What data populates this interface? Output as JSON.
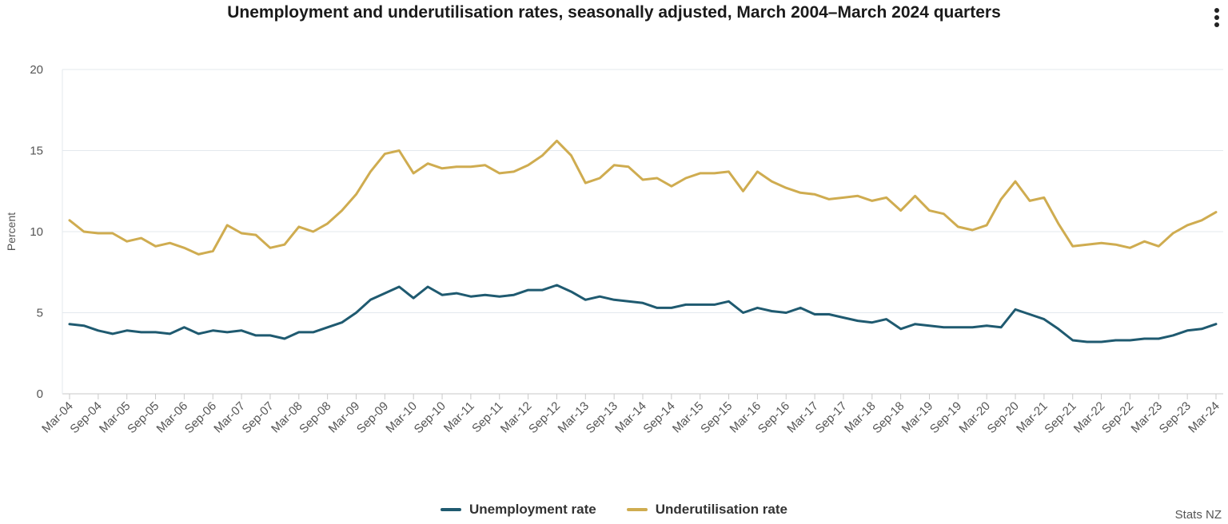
{
  "chart_data": {
    "type": "line",
    "title": "Unemployment and underutilisation rates, seasonally adjusted, March 2004–March 2024 quarters",
    "ylabel": "Percent",
    "xlabel": "",
    "ylim": [
      0,
      20
    ],
    "yticks": [
      "0",
      "5",
      "10",
      "15",
      "20"
    ],
    "grid": true,
    "legend_position": "bottom",
    "categories": [
      "Mar-04",
      "Jun-04",
      "Sep-04",
      "Dec-04",
      "Mar-05",
      "Jun-05",
      "Sep-05",
      "Dec-05",
      "Mar-06",
      "Jun-06",
      "Sep-06",
      "Dec-06",
      "Mar-07",
      "Jun-07",
      "Sep-07",
      "Dec-07",
      "Mar-08",
      "Jun-08",
      "Sep-08",
      "Dec-08",
      "Mar-09",
      "Jun-09",
      "Sep-09",
      "Dec-09",
      "Mar-10",
      "Jun-10",
      "Sep-10",
      "Dec-10",
      "Mar-11",
      "Jun-11",
      "Sep-11",
      "Dec-11",
      "Mar-12",
      "Jun-12",
      "Sep-12",
      "Dec-12",
      "Mar-13",
      "Jun-13",
      "Sep-13",
      "Dec-13",
      "Mar-14",
      "Jun-14",
      "Sep-14",
      "Dec-14",
      "Mar-15",
      "Jun-15",
      "Sep-15",
      "Dec-15",
      "Mar-16",
      "Jun-16",
      "Sep-16",
      "Dec-16",
      "Mar-17",
      "Jun-17",
      "Sep-17",
      "Dec-17",
      "Mar-18",
      "Jun-18",
      "Sep-18",
      "Dec-18",
      "Mar-19",
      "Jun-19",
      "Sep-19",
      "Dec-19",
      "Mar-20",
      "Jun-20",
      "Sep-20",
      "Dec-20",
      "Mar-21",
      "Jun-21",
      "Sep-21",
      "Dec-21",
      "Mar-22",
      "Jun-22",
      "Sep-22",
      "Dec-22",
      "Mar-23",
      "Jun-23",
      "Sep-23",
      "Dec-23",
      "Mar-24"
    ],
    "xtick_labels": [
      "Mar-04",
      "Sep-04",
      "Mar-05",
      "Sep-05",
      "Mar-06",
      "Sep-06",
      "Mar-07",
      "Sep-07",
      "Mar-08",
      "Sep-08",
      "Mar-09",
      "Sep-09",
      "Mar-10",
      "Sep-10",
      "Mar-11",
      "Sep-11",
      "Mar-12",
      "Sep-12",
      "Mar-13",
      "Sep-13",
      "Mar-14",
      "Sep-14",
      "Mar-15",
      "Sep-15",
      "Mar-16",
      "Sep-16",
      "Mar-17",
      "Sep-17",
      "Mar-18",
      "Sep-18",
      "Mar-19",
      "Sep-19",
      "Mar-20",
      "Sep-20",
      "Mar-21",
      "Sep-21",
      "Mar-22",
      "Sep-22",
      "Mar-23",
      "Sep-23",
      "Mar-24"
    ],
    "series": [
      {
        "name": "Unemployment rate",
        "color": "#1f5a70",
        "values": [
          4.3,
          4.2,
          3.9,
          3.7,
          3.9,
          3.8,
          3.8,
          3.7,
          4.1,
          3.7,
          3.9,
          3.8,
          3.9,
          3.6,
          3.6,
          3.4,
          3.8,
          3.8,
          4.1,
          4.4,
          5.0,
          5.8,
          6.2,
          6.6,
          5.9,
          6.6,
          6.1,
          6.2,
          6.0,
          6.1,
          6.0,
          6.1,
          6.4,
          6.4,
          6.7,
          6.3,
          5.8,
          6.0,
          5.8,
          5.7,
          5.6,
          5.3,
          5.3,
          5.5,
          5.5,
          5.5,
          5.7,
          5.0,
          5.3,
          5.1,
          5.0,
          5.3,
          4.9,
          4.9,
          4.7,
          4.5,
          4.4,
          4.6,
          4.0,
          4.3,
          4.2,
          4.1,
          4.1,
          4.1,
          4.2,
          4.1,
          5.2,
          4.9,
          4.6,
          4.0,
          3.3,
          3.2,
          3.2,
          3.3,
          3.3,
          3.4,
          3.4,
          3.6,
          3.9,
          4.0,
          4.3
        ]
      },
      {
        "name": "Underutilisation rate",
        "color": "#cfac50",
        "values": [
          10.7,
          10.0,
          9.9,
          9.9,
          9.4,
          9.6,
          9.1,
          9.3,
          9.0,
          8.6,
          8.8,
          10.4,
          9.9,
          9.8,
          9.0,
          9.2,
          10.3,
          10.0,
          10.5,
          11.3,
          12.3,
          13.7,
          14.8,
          15.0,
          13.6,
          14.2,
          13.9,
          14.0,
          14.0,
          14.1,
          13.6,
          13.7,
          14.1,
          14.7,
          15.6,
          14.7,
          13.0,
          13.3,
          14.1,
          14.0,
          13.2,
          13.3,
          12.8,
          13.3,
          13.6,
          13.6,
          13.7,
          12.5,
          13.7,
          13.1,
          12.7,
          12.4,
          12.3,
          12.0,
          12.1,
          12.2,
          11.9,
          12.1,
          11.3,
          12.2,
          11.3,
          11.1,
          10.3,
          10.1,
          10.4,
          12.0,
          13.1,
          11.9,
          12.1,
          10.5,
          9.1,
          9.2,
          9.3,
          9.2,
          9.0,
          9.4,
          9.1,
          9.9,
          10.4,
          10.7,
          11.2
        ]
      }
    ]
  },
  "source": "Stats NZ"
}
